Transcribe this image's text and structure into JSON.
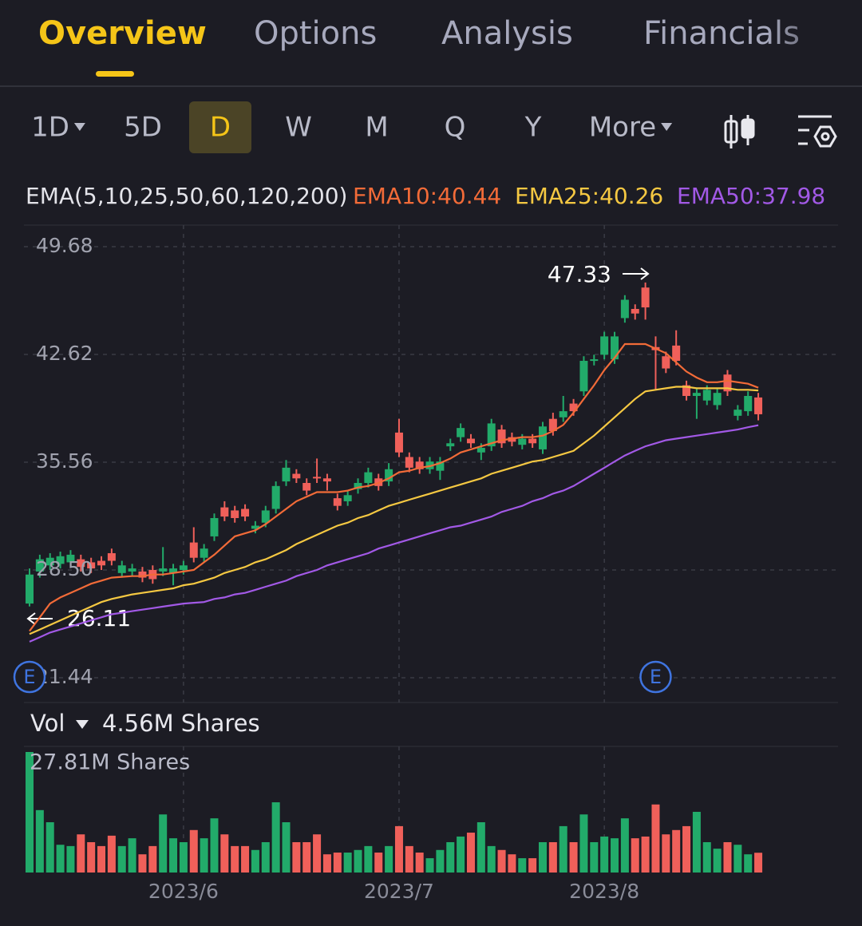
{
  "tabs": [
    "Overview",
    "Options",
    "Analysis",
    "Financials"
  ],
  "active_tab": 0,
  "timeframes": [
    {
      "label": "1D",
      "dropdown": true
    },
    {
      "label": "5D"
    },
    {
      "label": "D"
    },
    {
      "label": "W"
    },
    {
      "label": "M"
    },
    {
      "label": "Q"
    },
    {
      "label": "Y"
    },
    {
      "label": "More",
      "dropdown": true
    }
  ],
  "active_timeframe": 2,
  "chart_data": {
    "type": "candlestick",
    "indicator": "EMA(5,10,25,50,60,120,200)",
    "up_color": "#22ab6a",
    "down_color": "#f0605a",
    "categories": [
      null,
      null,
      null,
      null,
      null,
      null,
      null,
      null,
      null,
      null,
      null,
      null,
      null,
      null,
      null,
      "2023/6",
      null,
      null,
      null,
      null,
      null,
      null,
      null,
      null,
      null,
      null,
      null,
      null,
      null,
      null,
      null,
      null,
      null,
      null,
      null,
      null,
      "2023/7",
      null,
      null,
      null,
      null,
      null,
      null,
      null,
      null,
      null,
      null,
      null,
      null,
      null,
      null,
      null,
      null,
      null,
      null,
      null,
      "2023/8",
      null,
      null,
      null,
      null,
      null,
      null,
      null,
      null,
      null,
      null,
      null,
      null,
      null,
      null,
      null
    ],
    "open": [
      26.3,
      28.4,
      28.8,
      28.9,
      29.0,
      29.2,
      29.0,
      29.1,
      29.6,
      28.3,
      28.4,
      28.4,
      28.5,
      28.4,
      28.3,
      28.5,
      30.3,
      29.3,
      30.7,
      32.6,
      32.4,
      32.5,
      31.2,
      31.6,
      32.5,
      34.3,
      34.8,
      34.2,
      34.6,
      34.5,
      33.2,
      33.0,
      33.8,
      34.2,
      34.5,
      34.3,
      37.5,
      35.9,
      35.6,
      35.1,
      35.0,
      36.6,
      37.2,
      37.1,
      36.2,
      36.6,
      37.7,
      37.2,
      36.7,
      37.1,
      36.4,
      38.4,
      38.5,
      39.4,
      40.2,
      42.2,
      42.6,
      42.3,
      45.0,
      45.6,
      47.0,
      43.1,
      42.5,
      43.2,
      40.6,
      39.9,
      39.6,
      39.3,
      41.3,
      38.6,
      38.9,
      39.8
    ],
    "close": [
      28.2,
      29.2,
      29.3,
      29.4,
      29.5,
      28.7,
      28.6,
      28.8,
      29.1,
      28.8,
      28.6,
      28.0,
      27.9,
      28.6,
      28.6,
      28.8,
      29.3,
      29.9,
      31.9,
      32.0,
      31.9,
      32.0,
      31.4,
      32.4,
      34.0,
      35.2,
      34.5,
      33.7,
      34.5,
      34.3,
      32.7,
      33.4,
      34.2,
      34.9,
      34.0,
      35.1,
      36.2,
      35.2,
      35.1,
      35.6,
      35.6,
      36.8,
      37.8,
      36.8,
      36.5,
      38.1,
      36.8,
      36.9,
      37.1,
      36.8,
      37.9,
      37.6,
      38.9,
      38.9,
      42.2,
      42.3,
      43.8,
      43.8,
      46.2,
      45.3,
      45.7,
      42.9,
      41.7,
      42.2,
      39.9,
      40.1,
      40.3,
      40.1,
      40.2,
      39.0,
      39.9,
      38.7
    ],
    "high": [
      28.6,
      29.5,
      29.6,
      29.7,
      29.8,
      29.5,
      29.3,
      29.4,
      29.9,
      29.1,
      28.9,
      28.7,
      28.8,
      30.0,
      28.9,
      29.1,
      31.3,
      30.2,
      32.2,
      33.0,
      32.7,
      32.8,
      31.7,
      32.7,
      34.3,
      35.7,
      35.1,
      34.5,
      35.8,
      34.8,
      33.5,
      33.7,
      34.5,
      35.2,
      34.8,
      35.5,
      38.4,
      36.2,
      35.9,
      35.9,
      35.9,
      37.1,
      38.1,
      37.4,
      36.8,
      38.4,
      38.0,
      37.5,
      37.4,
      37.4,
      38.2,
      38.8,
      39.9,
      39.7,
      42.5,
      42.6,
      44.1,
      44.1,
      46.5,
      45.9,
      47.33,
      43.8,
      42.8,
      44.2,
      40.9,
      40.4,
      40.6,
      40.4,
      41.6,
      39.3,
      40.2,
      40.1
    ],
    "low": [
      26.11,
      28.0,
      28.5,
      28.6,
      28.7,
      28.4,
      28.3,
      28.5,
      28.8,
      28.0,
      28.1,
      27.7,
      27.6,
      28.1,
      27.5,
      28.2,
      29.0,
      29.0,
      30.4,
      31.7,
      31.6,
      31.7,
      30.9,
      31.3,
      32.2,
      34.0,
      34.2,
      33.4,
      34.2,
      33.7,
      32.4,
      32.7,
      33.5,
      33.9,
      33.7,
      34.0,
      35.9,
      34.9,
      34.8,
      34.8,
      34.4,
      36.3,
      36.9,
      36.5,
      35.7,
      36.3,
      36.5,
      36.6,
      36.4,
      36.5,
      36.1,
      37.3,
      38.2,
      38.6,
      39.9,
      41.9,
      42.3,
      42.0,
      44.7,
      44.9,
      44.9,
      40.3,
      41.4,
      41.9,
      39.6,
      38.4,
      39.3,
      39.0,
      39.9,
      38.3,
      38.6,
      38.3
    ],
    "high_label": "47.33",
    "low_label": "26.11",
    "lines": [
      {
        "label": "EMA10:40.44",
        "color": "#f26b38",
        "values": [
          24.5,
          25.4,
          26.3,
          26.7,
          27.0,
          27.3,
          27.6,
          27.8,
          28.0,
          28.05,
          28.1,
          28.1,
          28.2,
          28.2,
          28.3,
          28.4,
          28.5,
          29.0,
          29.5,
          30.1,
          30.7,
          30.9,
          31.1,
          31.5,
          32.0,
          32.5,
          33.0,
          33.3,
          33.6,
          33.6,
          33.6,
          33.7,
          33.9,
          34.0,
          34.2,
          34.5,
          34.9,
          35.0,
          35.2,
          35.3,
          35.5,
          35.8,
          36.2,
          36.4,
          36.6,
          36.8,
          37.0,
          37.1,
          37.2,
          37.2,
          37.3,
          37.6,
          38.0,
          38.8,
          39.7,
          40.6,
          41.6,
          42.4,
          43.3,
          43.3,
          43.3,
          43.0,
          42.7,
          42.1,
          41.5,
          41.1,
          40.8,
          40.8,
          40.9,
          40.8,
          40.7,
          40.44
        ]
      },
      {
        "label": "EMA25:40.26",
        "color": "#f5c842",
        "values": [
          24.3,
          24.6,
          24.9,
          25.2,
          25.5,
          25.8,
          26.1,
          26.4,
          26.6,
          26.75,
          26.9,
          27.0,
          27.1,
          27.2,
          27.3,
          27.5,
          27.6,
          27.8,
          28.0,
          28.3,
          28.5,
          28.7,
          29.0,
          29.2,
          29.5,
          29.8,
          30.2,
          30.5,
          30.8,
          31.1,
          31.4,
          31.6,
          31.9,
          32.1,
          32.4,
          32.7,
          32.9,
          33.1,
          33.3,
          33.5,
          33.7,
          33.9,
          34.1,
          34.3,
          34.5,
          34.8,
          35.0,
          35.2,
          35.4,
          35.6,
          35.7,
          35.9,
          36.1,
          36.3,
          36.8,
          37.3,
          37.9,
          38.5,
          39.1,
          39.7,
          40.2,
          40.3,
          40.4,
          40.5,
          40.5,
          40.4,
          40.4,
          40.4,
          40.4,
          40.3,
          40.3,
          40.26
        ]
      },
      {
        "label": "EMA50:37.98",
        "color": "#a259e6",
        "values": [
          23.8,
          24.1,
          24.4,
          24.6,
          24.8,
          25.0,
          25.2,
          25.4,
          25.6,
          25.7,
          25.8,
          25.9,
          26.0,
          26.1,
          26.2,
          26.3,
          26.35,
          26.4,
          26.6,
          26.7,
          26.9,
          27.0,
          27.2,
          27.4,
          27.6,
          27.8,
          28.1,
          28.3,
          28.5,
          28.8,
          29.0,
          29.2,
          29.4,
          29.6,
          29.9,
          30.1,
          30.3,
          30.5,
          30.7,
          30.9,
          31.1,
          31.3,
          31.4,
          31.6,
          31.8,
          32.0,
          32.3,
          32.5,
          32.7,
          33.0,
          33.2,
          33.5,
          33.7,
          34.0,
          34.4,
          34.8,
          35.2,
          35.6,
          36.0,
          36.3,
          36.6,
          36.8,
          37.0,
          37.1,
          37.2,
          37.3,
          37.4,
          37.5,
          37.6,
          37.7,
          37.85,
          37.98
        ]
      }
    ],
    "earnings": {
      "label": "E",
      "indices": [
        0,
        61
      ]
    },
    "ylim": [
      19.82,
      51.09
    ],
    "yticks": [
      49.68,
      42.62,
      35.56,
      {
        "value": 28.5,
        "label": "28.50"
      },
      21.44
    ],
    "grid": true,
    "volume": {
      "title": "Vol",
      "current_label": "4.56M Shares",
      "max_label": "27.81M Shares",
      "ylim": [
        0,
        27.81
      ],
      "values": [
        27.81,
        14.4,
        11.6,
        6.4,
        6.1,
        8.8,
        7.0,
        6.1,
        8.5,
        6.1,
        7.9,
        4.2,
        6.1,
        13.4,
        7.9,
        7.0,
        9.8,
        7.9,
        12.5,
        8.8,
        6.1,
        6.1,
        5.2,
        7.0,
        16.2,
        11.6,
        7.0,
        7.0,
        8.8,
        4.2,
        4.6,
        4.6,
        5.2,
        6.1,
        4.6,
        6.1,
        10.7,
        6.1,
        4.6,
        3.3,
        5.2,
        7.0,
        8.3,
        9.2,
        11.6,
        6.1,
        5.2,
        4.2,
        3.3,
        3.3,
        7.0,
        7.0,
        10.7,
        7.0,
        13.4,
        7.0,
        8.3,
        7.9,
        12.5,
        7.9,
        8.3,
        15.7,
        8.8,
        9.8,
        10.7,
        14.0,
        7.0,
        5.5,
        7.0,
        6.4,
        4.2,
        4.56
      ]
    }
  }
}
